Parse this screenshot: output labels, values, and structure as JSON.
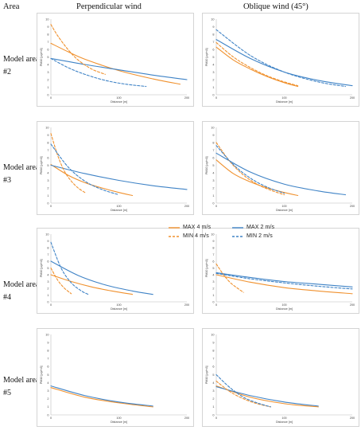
{
  "headers": {
    "area": "Area",
    "perpendicular": "Perpendicular wind",
    "oblique": "Oblique wind (45°)"
  },
  "row_labels": [
    "Model area #2",
    "Model area #3",
    "Model area #4",
    "Model area #5"
  ],
  "colors": {
    "max_4": "#f0912e",
    "max_2": "#3f83c6",
    "min_4": "#f0912e",
    "min_2": "#3f83c6"
  },
  "legend": [
    {
      "label": "MAX  4 m/s",
      "style": "solid",
      "color": "#f0912e"
    },
    {
      "label": "MAX  2 m/s",
      "style": "solid",
      "color": "#3f83c6"
    },
    {
      "label": "MIN  4 m/s",
      "style": "dashed",
      "color": "#f0912e"
    },
    {
      "label": "MIN  2 m/s",
      "style": "dashed",
      "color": "#3f83c6"
    }
  ],
  "chart_data": [
    {
      "type": "line",
      "row": "Model area #2",
      "wind": "Perpendicular wind",
      "xlabel": "Distance [m]",
      "ylabel": "PM10 [μg/m3]",
      "xlim": [
        0,
        200
      ],
      "ylim": [
        0,
        10
      ],
      "xticks": [
        "0",
        "100",
        "200"
      ],
      "yticks": [
        "0",
        "1",
        "2",
        "3",
        "4",
        "5",
        "6",
        "7",
        "8",
        "9",
        "10"
      ],
      "series": [
        {
          "name": "MAX 4 m/s",
          "x": [
            0,
            25,
            50,
            100,
            150,
            190
          ],
          "y": [
            6.8,
            5.7,
            4.7,
            3.2,
            2.1,
            1.4
          ]
        },
        {
          "name": "MAX 2 m/s",
          "x": [
            0,
            50,
            100,
            150,
            200
          ],
          "y": [
            4.8,
            4.0,
            3.3,
            2.6,
            2.0
          ]
        },
        {
          "name": "MIN 4 m/s",
          "x": [
            0,
            10,
            25,
            40,
            60,
            80
          ],
          "y": [
            9.3,
            7.8,
            6.0,
            4.6,
            3.4,
            2.7
          ]
        },
        {
          "name": "MIN 2 m/s",
          "x": [
            0,
            25,
            50,
            80,
            110,
            140
          ],
          "y": [
            4.8,
            3.6,
            2.7,
            1.9,
            1.4,
            1.1
          ]
        }
      ]
    },
    {
      "type": "line",
      "row": "Model area #2",
      "wind": "Oblique wind (45°)",
      "xlabel": "Distance [m]",
      "ylabel": "PM10 [μg/m3]",
      "xlim": [
        0,
        200
      ],
      "ylim": [
        0,
        10
      ],
      "xticks": [
        "0",
        "100",
        "200"
      ],
      "yticks": [
        "0",
        "1",
        "2",
        "3",
        "4",
        "5",
        "6",
        "7",
        "8",
        "9",
        "10"
      ],
      "series": [
        {
          "name": "MAX 4 m/s",
          "x": [
            0,
            25,
            50,
            75,
            100,
            120
          ],
          "y": [
            6.3,
            4.6,
            3.4,
            2.4,
            1.6,
            1.1
          ]
        },
        {
          "name": "MAX 2 m/s",
          "x": [
            0,
            50,
            100,
            150,
            200
          ],
          "y": [
            7.3,
            4.8,
            3.0,
            1.9,
            1.2
          ]
        },
        {
          "name": "MIN 4 m/s",
          "x": [
            0,
            25,
            50,
            75,
            100,
            120
          ],
          "y": [
            6.9,
            5.0,
            3.6,
            2.5,
            1.7,
            1.2
          ]
        },
        {
          "name": "MIN 2 m/s",
          "x": [
            0,
            50,
            100,
            150,
            190
          ],
          "y": [
            8.6,
            5.2,
            3.0,
            1.7,
            1.1
          ]
        }
      ]
    },
    {
      "type": "line",
      "row": "Model area #3",
      "wind": "Perpendicular wind",
      "xlabel": "Distance [m]",
      "ylabel": "PM10 [μg/m3]",
      "xlim": [
        0,
        200
      ],
      "ylim": [
        0,
        10
      ],
      "xticks": [
        "0",
        "100",
        "200"
      ],
      "yticks": [
        "0",
        "1",
        "2",
        "3",
        "4",
        "5",
        "6",
        "7",
        "8",
        "9",
        "10"
      ],
      "series": [
        {
          "name": "MAX 4 m/s",
          "x": [
            0,
            25,
            50,
            75,
            100,
            120
          ],
          "y": [
            5.1,
            3.7,
            2.7,
            2.0,
            1.4,
            1.0
          ]
        },
        {
          "name": "MAX 2 m/s",
          "x": [
            0,
            50,
            100,
            150,
            200
          ],
          "y": [
            5.0,
            3.9,
            3.0,
            2.3,
            1.8
          ]
        },
        {
          "name": "MIN 4 m/s",
          "x": [
            0,
            10,
            20,
            30,
            40,
            50
          ],
          "y": [
            9.2,
            6.3,
            4.2,
            2.9,
            2.0,
            1.4
          ]
        },
        {
          "name": "MIN 2 m/s",
          "x": [
            0,
            25,
            50,
            75,
            100
          ],
          "y": [
            7.8,
            4.8,
            2.9,
            1.8,
            1.1
          ]
        }
      ]
    },
    {
      "type": "line",
      "row": "Model area #3",
      "wind": "Oblique wind (45°)",
      "xlabel": "Distance [m]",
      "ylabel": "PM10 [μg/m3]",
      "xlim": [
        0,
        200
      ],
      "ylim": [
        0,
        10
      ],
      "xticks": [
        "0",
        "100",
        "200"
      ],
      "yticks": [
        "0",
        "1",
        "2",
        "3",
        "4",
        "5",
        "6",
        "7",
        "8",
        "9",
        "10"
      ],
      "series": [
        {
          "name": "MAX 4 m/s",
          "x": [
            0,
            25,
            50,
            75,
            100,
            120
          ],
          "y": [
            5.7,
            3.9,
            2.8,
            2.0,
            1.4,
            1.0
          ]
        },
        {
          "name": "MAX 2 m/s",
          "x": [
            0,
            50,
            100,
            150,
            190
          ],
          "y": [
            6.6,
            4.1,
            2.5,
            1.6,
            1.1
          ]
        },
        {
          "name": "MIN 4 m/s",
          "x": [
            0,
            20,
            40,
            60,
            80,
            100
          ],
          "y": [
            8.0,
            5.5,
            3.7,
            2.5,
            1.7,
            1.1
          ]
        },
        {
          "name": "MIN 2 m/s",
          "x": [
            0,
            25,
            50,
            75,
            100
          ],
          "y": [
            7.6,
            5.1,
            3.3,
            2.1,
            1.3
          ]
        }
      ]
    },
    {
      "type": "line",
      "row": "Model area #4",
      "wind": "Perpendicular wind",
      "xlabel": "Distance [m]",
      "ylabel": "PM10 [μg/m3]",
      "xlim": [
        0,
        200
      ],
      "ylim": [
        0,
        10
      ],
      "xticks": [
        "0",
        "100",
        "200"
      ],
      "yticks": [
        "0",
        "1",
        "2",
        "3",
        "4",
        "5",
        "6",
        "7",
        "8",
        "9",
        "10"
      ],
      "series": [
        {
          "name": "MAX 4 m/s",
          "x": [
            0,
            30,
            60,
            90,
            120
          ],
          "y": [
            4.0,
            3.0,
            2.2,
            1.6,
            1.1
          ]
        },
        {
          "name": "MAX 2 m/s",
          "x": [
            0,
            40,
            80,
            120,
            150
          ],
          "y": [
            6.0,
            3.9,
            2.5,
            1.6,
            1.1
          ]
        },
        {
          "name": "MIN 4 m/s",
          "x": [
            0,
            10,
            20,
            30
          ],
          "y": [
            5.0,
            3.2,
            2.0,
            1.2
          ]
        },
        {
          "name": "MIN 2 m/s",
          "x": [
            0,
            15,
            30,
            45,
            55
          ],
          "y": [
            8.8,
            5.0,
            2.8,
            1.6,
            1.1
          ]
        }
      ]
    },
    {
      "type": "line",
      "row": "Model area #4",
      "wind": "Oblique wind (45°)",
      "xlabel": "Distance [m]",
      "ylabel": "PM10 [μg/m3]",
      "xlim": [
        0,
        200
      ],
      "ylim": [
        0,
        10
      ],
      "xticks": [
        "0",
        "100",
        "200"
      ],
      "yticks": [
        "0",
        "1",
        "2",
        "3",
        "4",
        "5",
        "6",
        "7",
        "8",
        "9",
        "10"
      ],
      "series": [
        {
          "name": "MAX 4 m/s",
          "x": [
            0,
            50,
            100,
            150,
            200
          ],
          "y": [
            4.0,
            2.9,
            2.1,
            1.6,
            1.2
          ]
        },
        {
          "name": "MAX 2 m/s",
          "x": [
            0,
            50,
            100,
            150,
            200
          ],
          "y": [
            4.3,
            3.6,
            3.0,
            2.6,
            2.2
          ]
        },
        {
          "name": "MIN 4 m/s",
          "x": [
            0,
            10,
            20,
            30,
            40
          ],
          "y": [
            5.6,
            4.1,
            2.9,
            2.1,
            1.4
          ]
        },
        {
          "name": "MIN 2 m/s",
          "x": [
            0,
            50,
            100,
            150,
            200
          ],
          "y": [
            4.2,
            3.4,
            2.8,
            2.3,
            1.9
          ]
        }
      ]
    },
    {
      "type": "line",
      "row": "Model area #5",
      "wind": "Perpendicular wind",
      "xlabel": "Distance [m]",
      "ylabel": "PM10 [μg/m3]",
      "xlim": [
        0,
        200
      ],
      "ylim": [
        0,
        10
      ],
      "xticks": [
        "0",
        "100",
        "200"
      ],
      "yticks": [
        "0",
        "1",
        "2",
        "3",
        "4",
        "5",
        "6",
        "7",
        "8",
        "9",
        "10"
      ],
      "series": [
        {
          "name": "MAX 4 m/s",
          "x": [
            0,
            50,
            100,
            150
          ],
          "y": [
            3.4,
            2.2,
            1.5,
            1.0
          ]
        },
        {
          "name": "MAX 2 m/s",
          "x": [
            0,
            50,
            100,
            150
          ],
          "y": [
            3.6,
            2.4,
            1.6,
            1.1
          ]
        }
      ]
    },
    {
      "type": "line",
      "row": "Model area #5",
      "wind": "Oblique wind (45°)",
      "xlabel": "Distance [m]",
      "ylabel": "PM10 [μg/m3]",
      "xlim": [
        0,
        200
      ],
      "ylim": [
        0,
        10
      ],
      "xticks": [
        "0",
        "100",
        "200"
      ],
      "yticks": [
        "0",
        "1",
        "2",
        "3",
        "4",
        "5",
        "6",
        "7",
        "8",
        "9",
        "10"
      ],
      "series": [
        {
          "name": "MAX 4 m/s",
          "x": [
            0,
            50,
            100,
            150
          ],
          "y": [
            3.6,
            2.2,
            1.4,
            1.0
          ]
        },
        {
          "name": "MAX 2 m/s",
          "x": [
            0,
            50,
            100,
            150
          ],
          "y": [
            3.5,
            2.4,
            1.6,
            1.1
          ]
        },
        {
          "name": "MIN 4 m/s",
          "x": [
            0,
            20,
            40,
            60,
            80
          ],
          "y": [
            4.2,
            2.9,
            2.0,
            1.4,
            1.0
          ]
        },
        {
          "name": "MIN 2 m/s",
          "x": [
            0,
            20,
            40,
            60,
            80
          ],
          "y": [
            5.0,
            3.4,
            2.2,
            1.5,
            1.0
          ]
        }
      ]
    }
  ]
}
